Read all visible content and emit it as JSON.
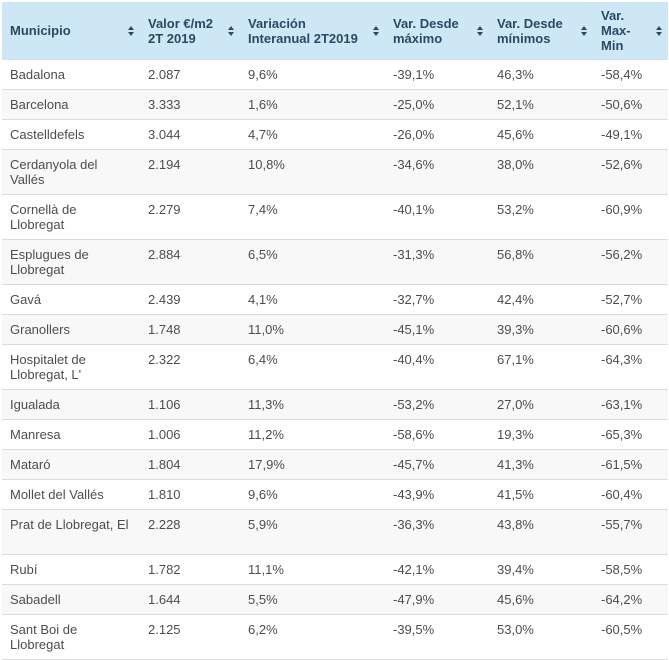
{
  "colors": {
    "header_bg": "#cde8f4",
    "header_text": "#2a4a63",
    "body_text": "#4d4d4d",
    "row_alt_bg": "#f8f8f8",
    "divider": "#dcdcdc"
  },
  "table": {
    "columns": [
      {
        "label": "Municipio"
      },
      {
        "label": "Valor €/m2 2T 2019"
      },
      {
        "label": "Variación Interanual 2T2019"
      },
      {
        "label": "Var. Desde máximo"
      },
      {
        "label": "Var. Desde mínimos"
      },
      {
        "label": "Var. Max-Min"
      }
    ],
    "column_keys": [
      "municipio",
      "valor",
      "variacion_interanual",
      "var_desde_maximo",
      "var_desde_minimos",
      "var_max_min"
    ],
    "rows": [
      {
        "municipio": "Badalona",
        "valor": "2.087",
        "variacion_interanual": "9,6%",
        "var_desde_maximo": "-39,1%",
        "var_desde_minimos": "46,3%",
        "var_max_min": "-58,4%"
      },
      {
        "municipio": "Barcelona",
        "valor": "3.333",
        "variacion_interanual": "1,6%",
        "var_desde_maximo": "-25,0%",
        "var_desde_minimos": "52,1%",
        "var_max_min": "-50,6%"
      },
      {
        "municipio": "Castelldefels",
        "valor": "3.044",
        "variacion_interanual": "4,7%",
        "var_desde_maximo": "-26,0%",
        "var_desde_minimos": "45,6%",
        "var_max_min": "-49,1%"
      },
      {
        "municipio": "Cerdanyola del Vallés",
        "valor": "2.194",
        "variacion_interanual": "10,8%",
        "var_desde_maximo": "-34,6%",
        "var_desde_minimos": "38,0%",
        "var_max_min": "-52,6%"
      },
      {
        "municipio": "Cornellà de Llobregat",
        "valor": "2.279",
        "variacion_interanual": "7,4%",
        "var_desde_maximo": "-40,1%",
        "var_desde_minimos": "53,2%",
        "var_max_min": "-60,9%"
      },
      {
        "municipio": "Esplugues de Llobregat",
        "valor": "2.884",
        "variacion_interanual": "6,5%",
        "var_desde_maximo": "-31,3%",
        "var_desde_minimos": "56,8%",
        "var_max_min": "-56,2%"
      },
      {
        "municipio": "Gavá",
        "valor": "2.439",
        "variacion_interanual": "4,1%",
        "var_desde_maximo": "-32,7%",
        "var_desde_minimos": "42,4%",
        "var_max_min": "-52,7%"
      },
      {
        "municipio": "Granollers",
        "valor": "1.748",
        "variacion_interanual": "11,0%",
        "var_desde_maximo": "-45,1%",
        "var_desde_minimos": "39,3%",
        "var_max_min": "-60,6%"
      },
      {
        "municipio": "Hospitalet de Llobregat, L'",
        "valor": "2.322",
        "variacion_interanual": "6,4%",
        "var_desde_maximo": "-40,4%",
        "var_desde_minimos": "67,1%",
        "var_max_min": "-64,3%"
      },
      {
        "municipio": "Igualada",
        "valor": "1.106",
        "variacion_interanual": "11,3%",
        "var_desde_maximo": "-53,2%",
        "var_desde_minimos": "27,0%",
        "var_max_min": "-63,1%"
      },
      {
        "municipio": "Manresa",
        "valor": "1.006",
        "variacion_interanual": "11,2%",
        "var_desde_maximo": "-58,6%",
        "var_desde_minimos": "19,3%",
        "var_max_min": "-65,3%"
      },
      {
        "municipio": "Mataró",
        "valor": "1.804",
        "variacion_interanual": "17,9%",
        "var_desde_maximo": "-45,7%",
        "var_desde_minimos": "41,3%",
        "var_max_min": "-61,5%"
      },
      {
        "municipio": "Mollet del Vallés",
        "valor": "1.810",
        "variacion_interanual": "9,6%",
        "var_desde_maximo": "-43,9%",
        "var_desde_minimos": "41,5%",
        "var_max_min": "-60,4%"
      },
      {
        "municipio": "Prat de Llobregat, El",
        "valor": "2.228",
        "variacion_interanual": "5,9%",
        "var_desde_maximo": "-36,3%",
        "var_desde_minimos": "43,8%",
        "var_max_min": "-55,7%"
      },
      {
        "municipio": "Rubí",
        "valor": "1.782",
        "variacion_interanual": "11,1%",
        "var_desde_maximo": "-42,1%",
        "var_desde_minimos": "39,4%",
        "var_max_min": "-58,5%"
      },
      {
        "municipio": "Sabadell",
        "valor": "1.644",
        "variacion_interanual": "5,5%",
        "var_desde_maximo": "-47,9%",
        "var_desde_minimos": "45,6%",
        "var_max_min": "-64,2%"
      },
      {
        "municipio": "Sant Boi de Llobregat",
        "valor": "2.125",
        "variacion_interanual": "6,2%",
        "var_desde_maximo": "-39,5%",
        "var_desde_minimos": "53,0%",
        "var_max_min": "-60,5%"
      }
    ]
  }
}
